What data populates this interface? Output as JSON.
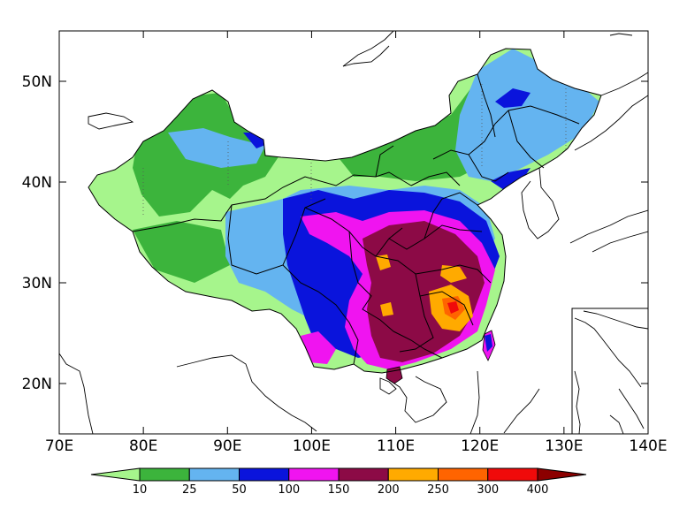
{
  "map": {
    "x_ticks": [
      "70E",
      "80E",
      "90E",
      "100E",
      "110E",
      "120E",
      "130E",
      "140E"
    ],
    "y_ticks": [
      "20N",
      "30N",
      "40N",
      "50N"
    ],
    "lon_range": [
      70,
      140
    ],
    "lat_range": [
      15,
      55
    ]
  },
  "colorbar": {
    "levels": [
      "10",
      "25",
      "50",
      "100",
      "150",
      "200",
      "250",
      "300",
      "400"
    ],
    "colors": [
      "#a6f58c",
      "#3cb43c",
      "#64b4f0",
      "#0a14dc",
      "#f014f0",
      "#8c0a46",
      "#ffaa00",
      "#ff6400",
      "#f00a0a",
      "#8c0000"
    ]
  }
}
